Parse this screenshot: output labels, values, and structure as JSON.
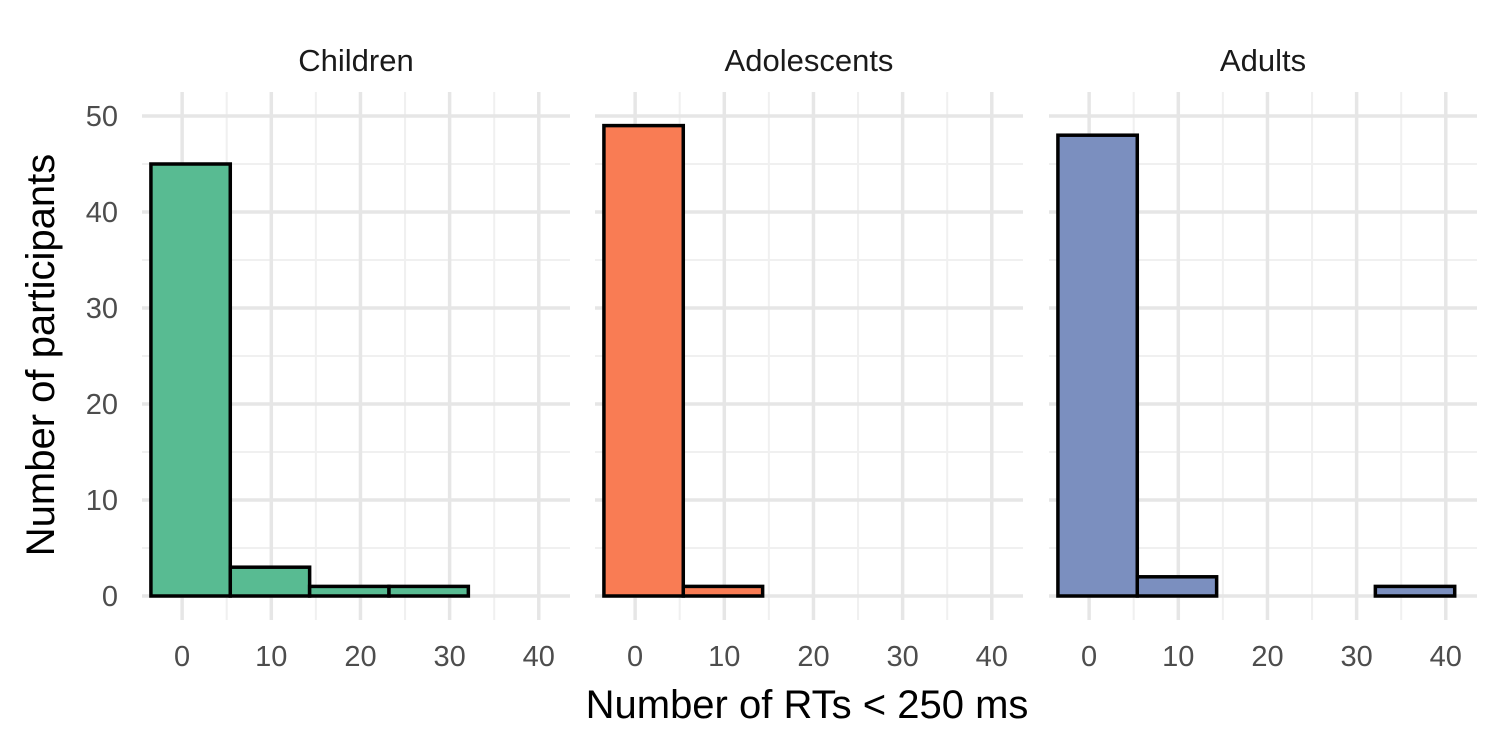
{
  "chart_data": {
    "type": "bar",
    "subtype": "faceted-histogram",
    "xlabel": "Number of RTs < 250 ms",
    "ylabel": "Number of participants",
    "x_ticks": [
      0,
      10,
      20,
      30,
      40
    ],
    "y_ticks": [
      0,
      10,
      20,
      30,
      40,
      50
    ],
    "xlim": [
      -4.5,
      43.5
    ],
    "ylim": [
      -2.5,
      52.5
    ],
    "bin_width": 8.9,
    "grid": true,
    "bar_outline_color": "#000000",
    "panels": [
      {
        "title": "Children",
        "color": "#58bb92",
        "bins": [
          {
            "x_start": -3.5,
            "x_end": 5.4,
            "count": 45
          },
          {
            "x_start": 5.4,
            "x_end": 14.3,
            "count": 3
          },
          {
            "x_start": 14.3,
            "x_end": 23.2,
            "count": 1
          },
          {
            "x_start": 23.2,
            "x_end": 32.1,
            "count": 1
          },
          {
            "x_start": 32.1,
            "x_end": 41.0,
            "count": 0
          }
        ]
      },
      {
        "title": "Adolescents",
        "color": "#f97c54",
        "bins": [
          {
            "x_start": -3.5,
            "x_end": 5.4,
            "count": 49
          },
          {
            "x_start": 5.4,
            "x_end": 14.3,
            "count": 1
          },
          {
            "x_start": 14.3,
            "x_end": 23.2,
            "count": 0
          },
          {
            "x_start": 23.2,
            "x_end": 32.1,
            "count": 0
          },
          {
            "x_start": 32.1,
            "x_end": 41.0,
            "count": 0
          }
        ]
      },
      {
        "title": "Adults",
        "color": "#7b8fbf",
        "bins": [
          {
            "x_start": -3.5,
            "x_end": 5.4,
            "count": 48
          },
          {
            "x_start": 5.4,
            "x_end": 14.3,
            "count": 2
          },
          {
            "x_start": 14.3,
            "x_end": 23.2,
            "count": 0
          },
          {
            "x_start": 23.2,
            "x_end": 32.1,
            "count": 0
          },
          {
            "x_start": 32.1,
            "x_end": 41.0,
            "count": 1
          }
        ]
      }
    ]
  }
}
